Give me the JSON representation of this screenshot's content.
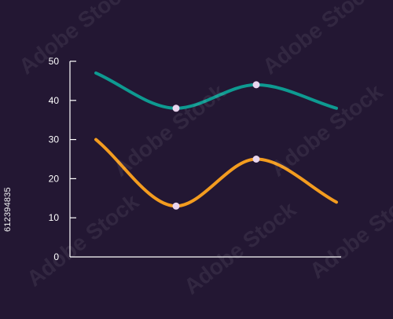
{
  "chart_data": {
    "type": "line",
    "title": "",
    "xlabel": "",
    "ylabel": "",
    "ylim": [
      0,
      50
    ],
    "yticks": [
      "0",
      "10",
      "20",
      "30",
      "40",
      "50"
    ],
    "x": [
      1,
      2,
      3,
      4
    ],
    "series": [
      {
        "values": [
          47,
          38,
          44,
          38
        ],
        "color": "#0e9a91",
        "markers": [
          false,
          true,
          true,
          false
        ]
      },
      {
        "values": [
          30,
          13,
          25,
          14
        ],
        "color": "#f39c1f",
        "markers": [
          false,
          true,
          true,
          false
        ]
      }
    ],
    "grid": false,
    "legend": "none"
  },
  "colors": {
    "background": "#231733",
    "axis": "#ffffff",
    "marker_fill": "#e9d5ee"
  },
  "stock_id": "612394835",
  "watermark": "Adobe Stock"
}
